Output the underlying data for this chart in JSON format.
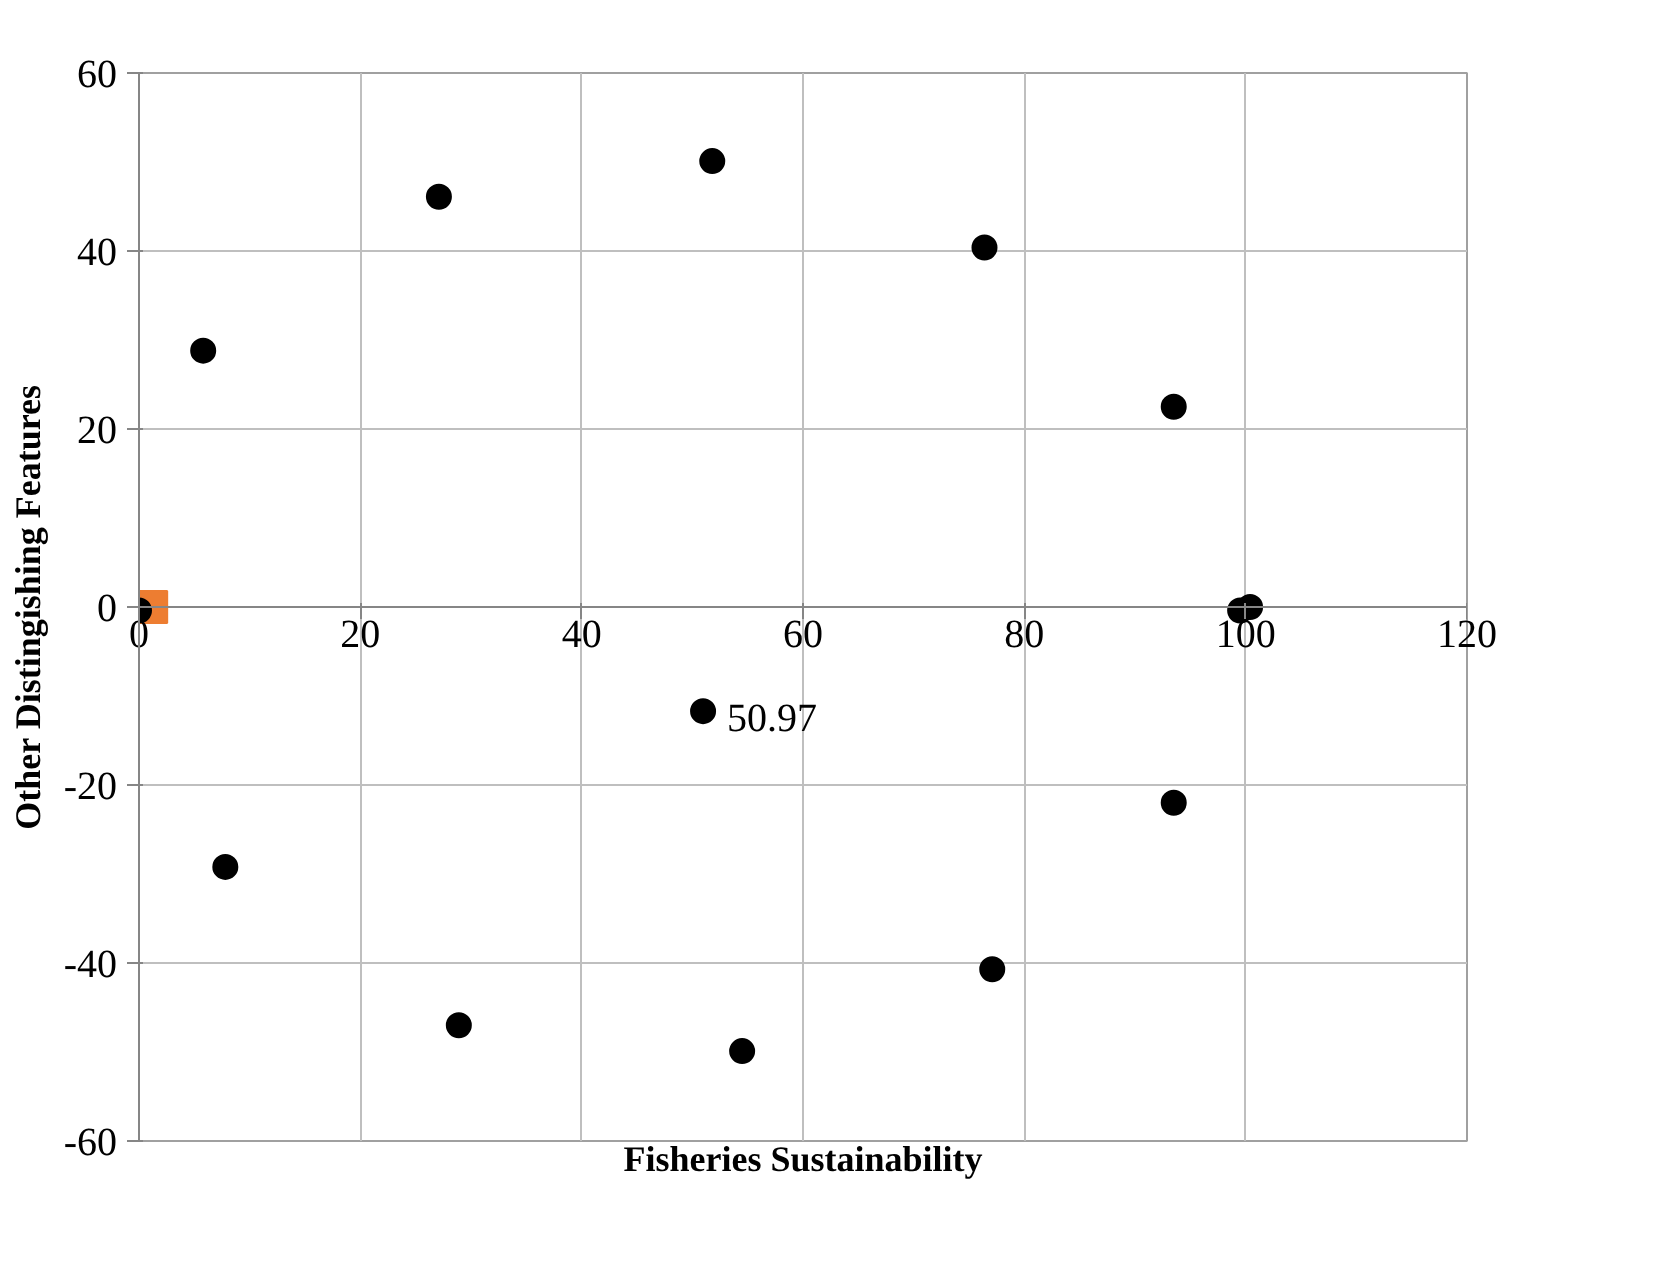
{
  "chart_data": {
    "type": "scatter",
    "xlabel": "Fisheries Sustainability",
    "ylabel": "Other Distingishing Features",
    "xlim": [
      0,
      120
    ],
    "xticks": [
      0,
      20,
      40,
      60,
      80,
      100,
      120
    ],
    "ylim": [
      -60,
      60
    ],
    "yticks": [
      -60,
      -40,
      -20,
      0,
      20,
      40,
      60
    ],
    "grid": true,
    "series": [
      {
        "color": "#ed7d31",
        "marker": "square",
        "x": [
          1.1
        ],
        "values": [
          0
        ]
      },
      {
        "color": "#000000",
        "marker": "circle",
        "x": [
          5.8,
          27.1,
          51.8,
          76.4,
          93.5,
          100.4,
          99.5,
          93.5,
          77.1,
          54.5,
          28.9,
          7.8,
          0,
          50.97
        ],
        "values": [
          28.8,
          46.1,
          50.1,
          40.4,
          22.5,
          0,
          -0.4,
          -22,
          -40.7,
          -49.9,
          -47,
          -29.2,
          -0.4,
          -11.7
        ]
      }
    ],
    "annotations": [
      {
        "text": "50.97",
        "x": 50.97,
        "y": -11.7
      }
    ]
  }
}
